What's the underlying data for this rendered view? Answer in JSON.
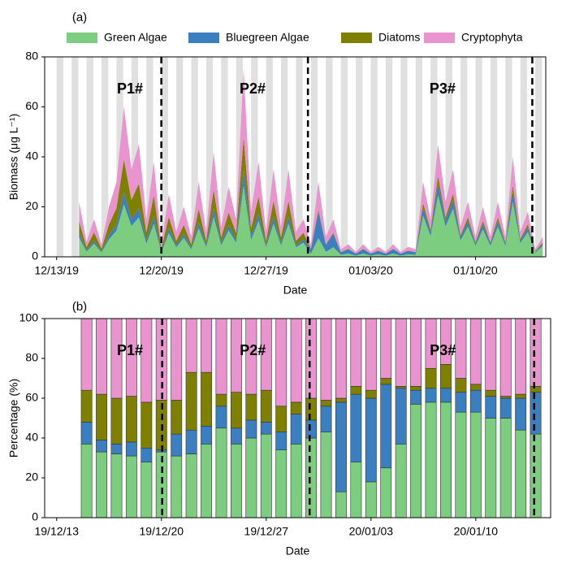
{
  "chart_data": [
    {
      "type": "area",
      "panel_label": "(a)",
      "x_label": "Date",
      "y_label": "Biomass (μg L⁻¹)",
      "legend": true,
      "night_shading": true,
      "xlim": [
        -0.8,
        32.7
      ],
      "ylim": [
        0,
        80
      ],
      "yticks": [
        0,
        20,
        40,
        60,
        80
      ],
      "xticks": [
        {
          "value": 0,
          "label": "12/13/19"
        },
        {
          "value": 7,
          "label": "12/20/19"
        },
        {
          "value": 14,
          "label": "12/27/19"
        },
        {
          "value": 21,
          "label": "01/03/20"
        },
        {
          "value": 28,
          "label": "01/10/20"
        }
      ],
      "dividers": [
        7,
        16.8,
        31.8
      ],
      "annotations": [
        {
          "text": "P1#",
          "x": 4.9
        },
        {
          "text": "P2#",
          "x": 13.1
        },
        {
          "text": "P3#",
          "x": 25.8
        }
      ],
      "x": [
        1.5,
        2,
        2.5,
        3,
        3.5,
        4,
        4.5,
        5,
        5.5,
        6,
        6.5,
        7,
        7.5,
        8,
        8.5,
        9,
        9.5,
        10,
        10.5,
        11,
        11.5,
        12,
        12.5,
        13,
        13.5,
        14,
        14.5,
        15,
        15.5,
        16,
        16.5,
        17,
        17.5,
        18,
        18.5,
        19,
        19.5,
        20,
        20.5,
        21,
        21.5,
        22,
        22.5,
        23,
        23.5,
        24,
        24.5,
        25,
        25.5,
        26,
        26.5,
        27,
        27.5,
        28,
        28.5,
        29,
        29.5,
        30,
        30.5,
        31,
        31.5,
        32,
        32.5
      ],
      "series": [
        {
          "name": "Green Algae",
          "color": "#7ccd7f",
          "values": [
            7.7,
            2.1,
            5.3,
            1.8,
            7,
            10.5,
            21,
            12.3,
            15.8,
            5.3,
            13.3,
            1.8,
            9.5,
            3.8,
            7.6,
            3,
            11.4,
            3.8,
            16,
            4.6,
            10.6,
            5.7,
            28.5,
            6.8,
            14.4,
            3.8,
            13.3,
            4.6,
            13.3,
            3.8,
            5.7,
            1.3,
            7.5,
            2,
            3.8,
            0.8,
            1.3,
            0.5,
            1.3,
            0.5,
            1,
            0.5,
            1.3,
            0.5,
            1,
            0.8,
            16.5,
            8.3,
            24.8,
            12.1,
            19.3,
            6.6,
            12.1,
            4.4,
            11,
            4.4,
            12.1,
            4.4,
            22,
            5.5,
            9.9,
            1.7,
            4.4
          ]
        },
        {
          "name": "Bluegreen Algae",
          "color": "#3a7fc0",
          "values": [
            1.8,
            0.5,
            1.2,
            0.4,
            1.6,
            2.4,
            4.8,
            2.8,
            3.6,
            1.2,
            3,
            0.4,
            2,
            0.8,
            1.6,
            0.6,
            2.4,
            0.8,
            3.4,
            1,
            2.2,
            1.2,
            6,
            1.4,
            3,
            0.8,
            2.8,
            1,
            2.8,
            0.8,
            1.2,
            1.8,
            10.5,
            2.8,
            5.3,
            1,
            1.8,
            0.7,
            1.8,
            0.7,
            1.4,
            0.7,
            1.8,
            0.7,
            1.4,
            1,
            3,
            1.5,
            4.5,
            2.2,
            3.5,
            1.2,
            2.2,
            0.8,
            2,
            0.8,
            2.2,
            0.8,
            4,
            1,
            1.8,
            0.3,
            0.8
          ]
        },
        {
          "name": "Diatoms",
          "color": "#808000",
          "values": [
            4.8,
            1.3,
            3.3,
            1.1,
            4.4,
            6.6,
            13.2,
            7.7,
            9.9,
            3.3,
            8.4,
            1.1,
            4.5,
            1.8,
            3.6,
            1.4,
            5.4,
            1.8,
            7.6,
            2.2,
            5,
            2.7,
            13.5,
            3.2,
            6.8,
            1.8,
            6.3,
            2.2,
            6.3,
            1.8,
            2.7,
            0.2,
            0.9,
            0.2,
            0.5,
            0.1,
            0.1,
            0.1,
            0.1,
            0.1,
            0.1,
            0.1,
            0.1,
            0.1,
            0.1,
            0.1,
            2.1,
            1,
            3.2,
            1.5,
            2.5,
            0.8,
            1.5,
            0.6,
            1.4,
            0.6,
            1.5,
            0.6,
            2.8,
            0.7,
            1.3,
            0.2,
            0.6
          ]
        },
        {
          "name": "Cryptophyta",
          "color": "#ea94cf",
          "values": [
            7.7,
            2.1,
            5.2,
            1.7,
            7,
            10.5,
            21,
            12.2,
            15.7,
            5.2,
            13.3,
            1.7,
            9,
            3.6,
            7.2,
            3,
            10.8,
            3.6,
            15,
            4.2,
            10.2,
            5.4,
            27,
            6.6,
            13.8,
            3.6,
            12.6,
            4.2,
            12.6,
            3.6,
            5.4,
            1.7,
            11.1,
            3,
            5.4,
            1.1,
            1.8,
            0.7,
            1.8,
            0.7,
            1.5,
            0.7,
            1.8,
            0.7,
            1.5,
            1.1,
            8.4,
            4.2,
            12.5,
            6.2,
            9.7,
            3.4,
            6.2,
            2.2,
            5.6,
            2.2,
            6.2,
            2.2,
            11.2,
            2.8,
            5,
            0.8,
            2.2
          ]
        }
      ]
    },
    {
      "type": "bar",
      "panel_label": "(b)",
      "x_label": "Date",
      "y_label": "Percentage (%)",
      "xlim": [
        -0.8,
        33
      ],
      "ylim": [
        0,
        100
      ],
      "yticks": [
        0,
        20,
        40,
        60,
        80,
        100
      ],
      "xticks": [
        {
          "value": 0,
          "label": "19/12/13"
        },
        {
          "value": 7,
          "label": "19/12/20"
        },
        {
          "value": 14,
          "label": "19/12/27"
        },
        {
          "value": 21,
          "label": "20/01/03"
        },
        {
          "value": 28,
          "label": "20/01/10"
        }
      ],
      "dividers": [
        7.05,
        16.9,
        31.9
      ],
      "annotations": [
        {
          "text": "P1#",
          "x": 4.9
        },
        {
          "text": "P2#",
          "x": 13.1
        },
        {
          "text": "P3#",
          "x": 25.8
        }
      ],
      "x": [
        2,
        3,
        4,
        5,
        6,
        7,
        8,
        9,
        10,
        11,
        12,
        13,
        14,
        15,
        16,
        17,
        18,
        19,
        20,
        21,
        22,
        23,
        24,
        25,
        26,
        27,
        28,
        29,
        30,
        31,
        32
      ],
      "series": [
        {
          "name": "Green Algae",
          "color": "#7ccd7f",
          "values": [
            37,
            33,
            32,
            31,
            28,
            33,
            31,
            32,
            37,
            45,
            37,
            40,
            42,
            34,
            37,
            40,
            43,
            13,
            28,
            18,
            25,
            37,
            57,
            58,
            58,
            53,
            53,
            50,
            50,
            44,
            42
          ]
        },
        {
          "name": "Bluegreen Algae",
          "color": "#3a7fc0",
          "values": [
            11,
            6,
            5,
            7,
            7,
            1,
            11,
            12,
            9,
            11,
            8,
            9,
            6,
            9,
            15,
            9,
            13,
            45,
            34,
            42,
            42,
            28,
            7,
            7,
            7,
            10,
            11,
            11,
            10,
            16,
            21
          ]
        },
        {
          "name": "Diatoms",
          "color": "#808000",
          "values": [
            16,
            23,
            23,
            23,
            23,
            25,
            17,
            29,
            27,
            6,
            18,
            13,
            16,
            13,
            6,
            11,
            3,
            2,
            4,
            4,
            3,
            1,
            2,
            10,
            12,
            7,
            3,
            3,
            1,
            2,
            3
          ]
        },
        {
          "name": "Cryptophyta",
          "color": "#ea94cf",
          "values": [
            36,
            38,
            40,
            39,
            42,
            41,
            41,
            27,
            27,
            38,
            37,
            38,
            36,
            44,
            42,
            40,
            41,
            40,
            34,
            36,
            30,
            34,
            34,
            25,
            23,
            30,
            33,
            36,
            39,
            38,
            34
          ]
        }
      ]
    }
  ]
}
